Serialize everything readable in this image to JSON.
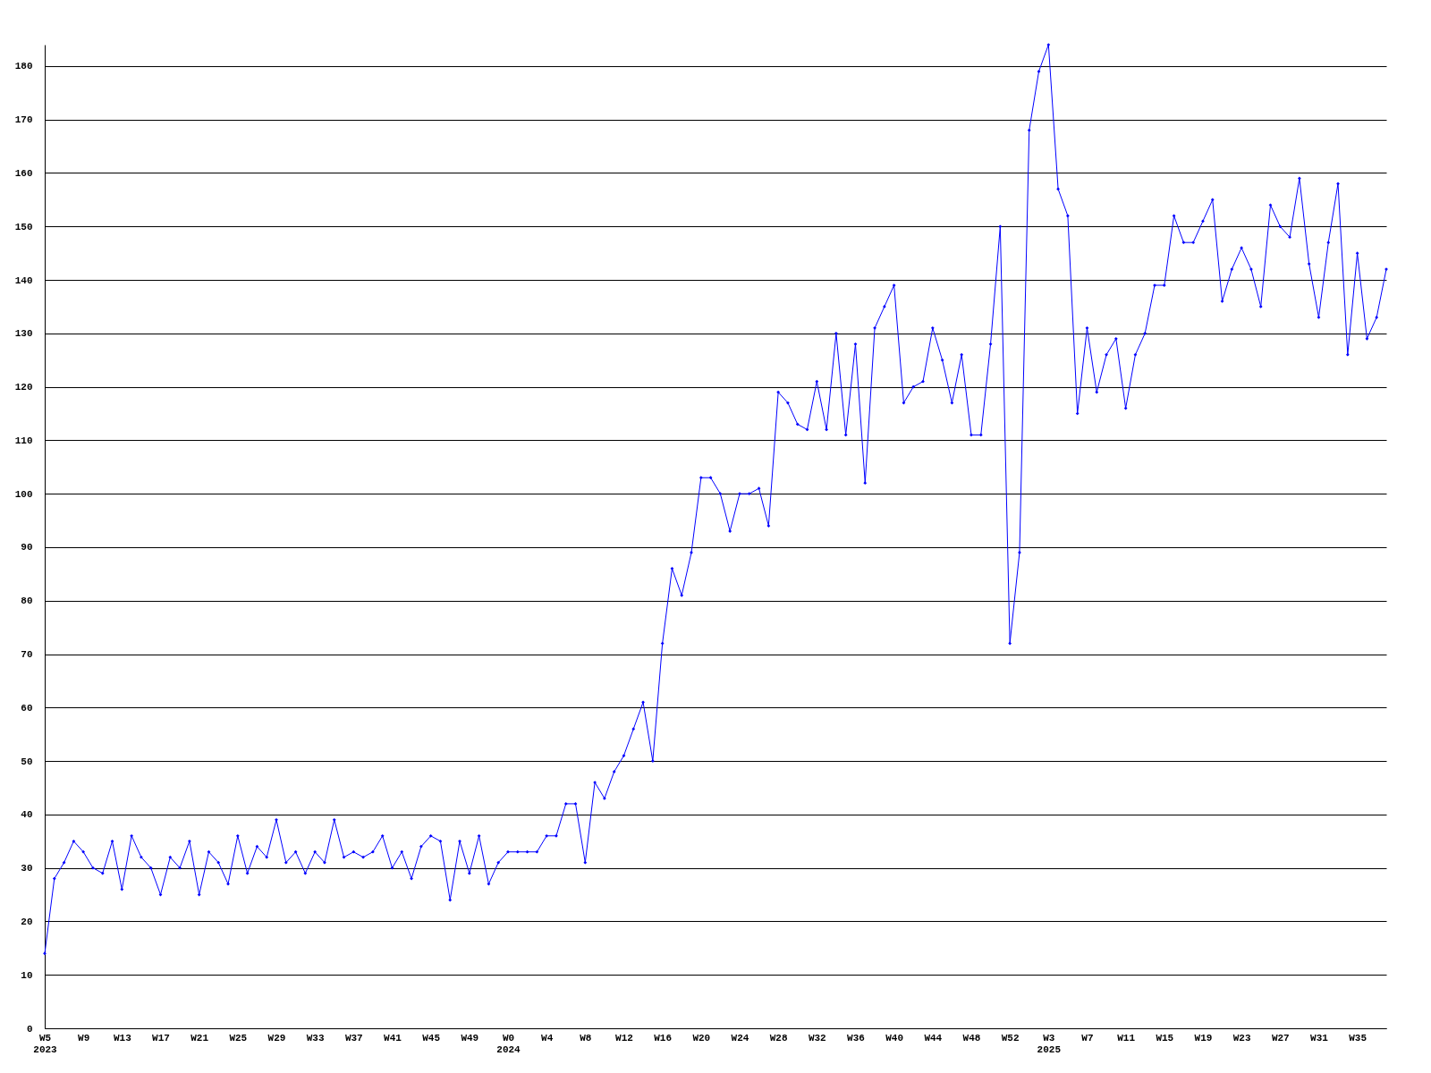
{
  "chart_data": {
    "type": "line",
    "categories": [
      "W5\n2023",
      null,
      null,
      null,
      "W9",
      null,
      null,
      null,
      "W13",
      null,
      null,
      null,
      "W17",
      null,
      null,
      null,
      "W21",
      null,
      null,
      null,
      "W25",
      null,
      null,
      null,
      "W29",
      null,
      null,
      null,
      "W33",
      null,
      null,
      null,
      "W37",
      null,
      null,
      null,
      "W41",
      null,
      null,
      null,
      "W45",
      null,
      null,
      null,
      "W49",
      null,
      null,
      null,
      "W0\n2024",
      null,
      null,
      null,
      "W4",
      null,
      null,
      null,
      "W8",
      null,
      null,
      null,
      "W12",
      null,
      null,
      null,
      "W16",
      null,
      null,
      null,
      "W20",
      null,
      null,
      null,
      "W24",
      null,
      null,
      null,
      "W28",
      null,
      null,
      null,
      "W32",
      null,
      null,
      null,
      "W36",
      null,
      null,
      null,
      "W40",
      null,
      null,
      null,
      "W44",
      null,
      null,
      null,
      "W48",
      null,
      null,
      null,
      "W52",
      null,
      null,
      null,
      "W3\n2025",
      null,
      null,
      null,
      "W7",
      null,
      null,
      null,
      "W11",
      null,
      null,
      null,
      "W15",
      null,
      null,
      null,
      "W19",
      null,
      null,
      null,
      "W23",
      null,
      null,
      null,
      "W27",
      null,
      null,
      null,
      "W31",
      null,
      null,
      null,
      "W35",
      null,
      null,
      null
    ],
    "series": [
      {
        "color": "#0000ff",
        "values": [
          14,
          28,
          31,
          35,
          33,
          30,
          29,
          35,
          26,
          36,
          32,
          30,
          25,
          32,
          30,
          35,
          25,
          33,
          31,
          27,
          36,
          29,
          34,
          32,
          39,
          31,
          33,
          29,
          33,
          31,
          39,
          32,
          33,
          32,
          33,
          36,
          30,
          33,
          28,
          34,
          36,
          35,
          24,
          35,
          29,
          36,
          27,
          31,
          33,
          33,
          33,
          33,
          36,
          36,
          42,
          42,
          31,
          46,
          43,
          48,
          51,
          56,
          61,
          50,
          72,
          86,
          81,
          89,
          103,
          103,
          100,
          93,
          100,
          100,
          101,
          94,
          119,
          117,
          113,
          112,
          121,
          112,
          130,
          111,
          128,
          102,
          131,
          135,
          139,
          117,
          120,
          121,
          131,
          125,
          117,
          126,
          111,
          111,
          128,
          150,
          72,
          89,
          168,
          179,
          184,
          157,
          152,
          115,
          131,
          119,
          126,
          129,
          116,
          126,
          130,
          139,
          139,
          152,
          147,
          147,
          151,
          155,
          136,
          142,
          146,
          142,
          135,
          154,
          150,
          148,
          159,
          143,
          133,
          147,
          158,
          126,
          145,
          129,
          133,
          142
        ]
      }
    ],
    "ylim": [
      0,
      184
    ],
    "yticks": [
      0,
      10,
      20,
      30,
      40,
      50,
      60,
      70,
      80,
      90,
      100,
      110,
      120,
      130,
      140,
      150,
      160,
      170,
      180
    ],
    "grid": "y",
    "marker": "diamond",
    "line_style": "solid"
  }
}
